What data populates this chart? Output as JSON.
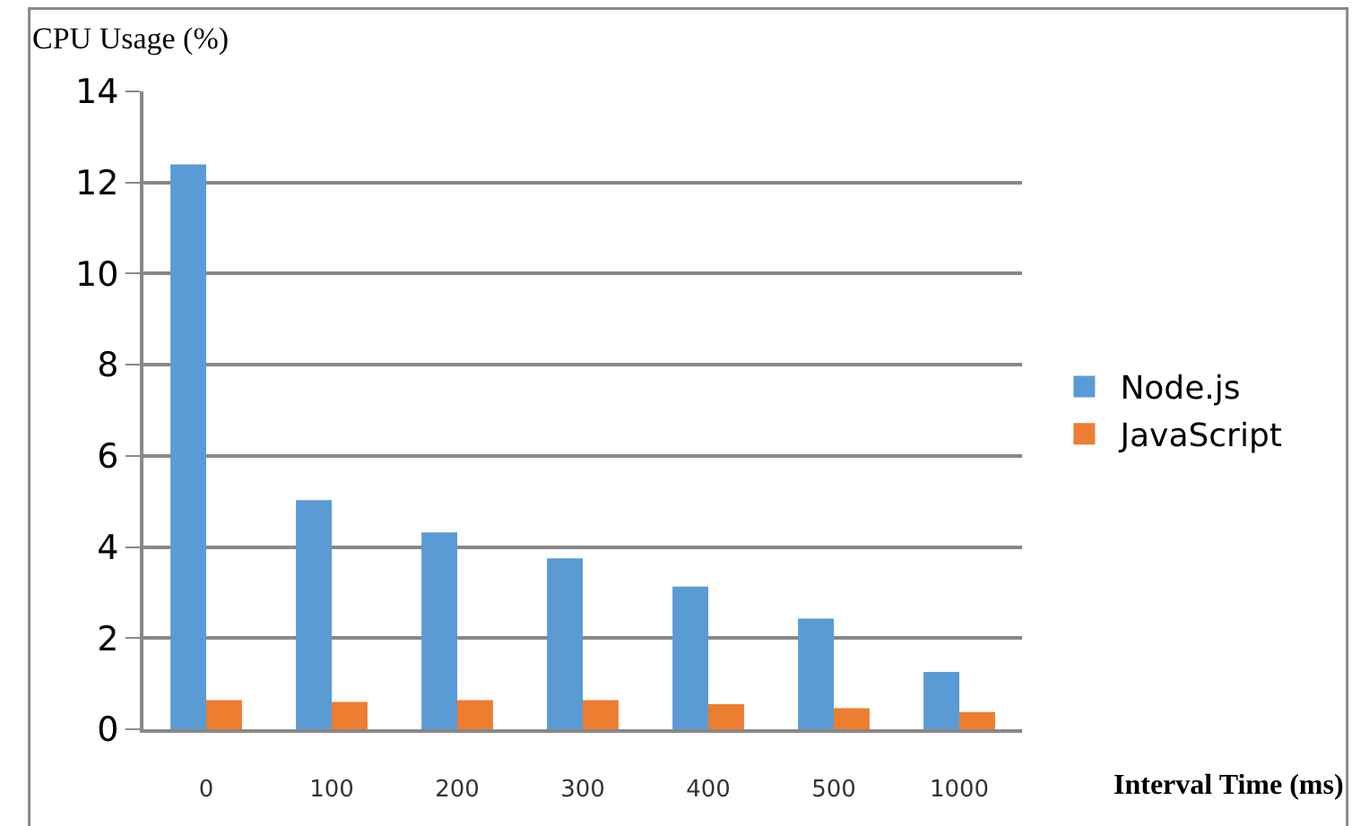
{
  "chart_data": {
    "type": "bar",
    "xlabel": "Interval Time (ms)",
    "ylabel": "CPU Usage (%)",
    "categories": [
      "0",
      "100",
      "200",
      "300",
      "400",
      "500",
      "1000"
    ],
    "series": [
      {
        "name": "Node.js",
        "color": "#5b9bd5",
        "values": [
          12.4,
          5.03,
          4.32,
          3.75,
          3.13,
          2.43,
          1.26
        ]
      },
      {
        "name": "JavaScript",
        "color": "#ed7d31",
        "values": [
          0.64,
          0.6,
          0.64,
          0.64,
          0.55,
          0.46,
          0.38
        ]
      }
    ],
    "ylim": [
      0,
      14
    ],
    "yticks": [
      0,
      2,
      4,
      6,
      8,
      10,
      12,
      14
    ],
    "grid": "y",
    "legend": "right"
  }
}
